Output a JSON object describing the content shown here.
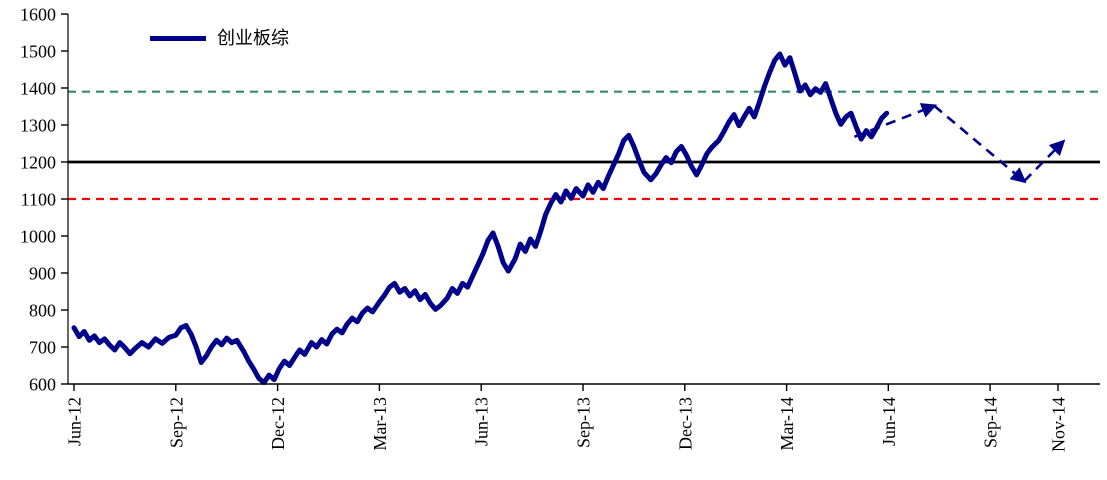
{
  "chart_data": {
    "type": "line",
    "title": "",
    "legend": [
      {
        "label": "创业板综",
        "color": "#00008B"
      }
    ],
    "grid": false,
    "legend_position": "top-left-inside",
    "xlim": [
      0,
      29
    ],
    "ylim": [
      600,
      1600
    ],
    "x_unit": "months since Jun-2012",
    "y_ticks": [
      600,
      700,
      800,
      900,
      1000,
      1100,
      1200,
      1300,
      1400,
      1500,
      1600
    ],
    "x_ticks": [
      {
        "pos": 0,
        "label": "Jun-12"
      },
      {
        "pos": 3,
        "label": "Sep-12"
      },
      {
        "pos": 6,
        "label": "Dec-12"
      },
      {
        "pos": 9,
        "label": "Mar-13"
      },
      {
        "pos": 12,
        "label": "Jun-13"
      },
      {
        "pos": 15,
        "label": "Sep-13"
      },
      {
        "pos": 18,
        "label": "Dec-13"
      },
      {
        "pos": 21,
        "label": "Mar-14"
      },
      {
        "pos": 24,
        "label": "Jun-14"
      },
      {
        "pos": 27,
        "label": "Sep-14"
      },
      {
        "pos": 29,
        "label": "Nov-14"
      }
    ],
    "reference_lines": [
      {
        "value": 1390,
        "color": "#2E8B6E",
        "style": "dashed",
        "width": 2.2
      },
      {
        "value": 1200,
        "color": "#000000",
        "style": "solid",
        "width": 2.8
      },
      {
        "value": 1100,
        "color": "#FF0000",
        "style": "dashed",
        "width": 2.2
      }
    ],
    "series": [
      {
        "name": "创业板综",
        "color": "#00008B",
        "width": 5,
        "style": "solid",
        "points": [
          [
            0,
            752
          ],
          [
            0.15,
            728
          ],
          [
            0.3,
            742
          ],
          [
            0.45,
            718
          ],
          [
            0.6,
            730
          ],
          [
            0.75,
            712
          ],
          [
            0.9,
            722
          ],
          [
            1.05,
            705
          ],
          [
            1.2,
            692
          ],
          [
            1.35,
            712
          ],
          [
            1.5,
            698
          ],
          [
            1.65,
            682
          ],
          [
            1.8,
            696
          ],
          [
            2,
            712
          ],
          [
            2.2,
            700
          ],
          [
            2.4,
            722
          ],
          [
            2.6,
            710
          ],
          [
            2.8,
            726
          ],
          [
            3,
            732
          ],
          [
            3.15,
            752
          ],
          [
            3.3,
            758
          ],
          [
            3.45,
            735
          ],
          [
            3.6,
            700
          ],
          [
            3.75,
            658
          ],
          [
            3.9,
            676
          ],
          [
            4.05,
            700
          ],
          [
            4.2,
            718
          ],
          [
            4.35,
            706
          ],
          [
            4.5,
            724
          ],
          [
            4.65,
            712
          ],
          [
            4.8,
            718
          ],
          [
            5,
            688
          ],
          [
            5.15,
            662
          ],
          [
            5.3,
            640
          ],
          [
            5.45,
            615
          ],
          [
            5.6,
            604
          ],
          [
            5.75,
            624
          ],
          [
            5.9,
            612
          ],
          [
            6.05,
            642
          ],
          [
            6.2,
            662
          ],
          [
            6.35,
            650
          ],
          [
            6.5,
            672
          ],
          [
            6.65,
            692
          ],
          [
            6.8,
            680
          ],
          [
            7,
            712
          ],
          [
            7.15,
            700
          ],
          [
            7.3,
            720
          ],
          [
            7.45,
            708
          ],
          [
            7.6,
            735
          ],
          [
            7.75,
            748
          ],
          [
            7.9,
            738
          ],
          [
            8.05,
            762
          ],
          [
            8.2,
            778
          ],
          [
            8.35,
            768
          ],
          [
            8.5,
            792
          ],
          [
            8.65,
            805
          ],
          [
            8.8,
            795
          ],
          [
            9,
            822
          ],
          [
            9.15,
            840
          ],
          [
            9.3,
            862
          ],
          [
            9.45,
            872
          ],
          [
            9.6,
            848
          ],
          [
            9.75,
            858
          ],
          [
            9.9,
            838
          ],
          [
            10.05,
            852
          ],
          [
            10.2,
            828
          ],
          [
            10.35,
            842
          ],
          [
            10.5,
            818
          ],
          [
            10.65,
            802
          ],
          [
            10.8,
            812
          ],
          [
            11,
            832
          ],
          [
            11.15,
            858
          ],
          [
            11.3,
            845
          ],
          [
            11.45,
            872
          ],
          [
            11.6,
            862
          ],
          [
            11.75,
            892
          ],
          [
            11.9,
            922
          ],
          [
            12.05,
            952
          ],
          [
            12.2,
            988
          ],
          [
            12.35,
            1008
          ],
          [
            12.5,
            972
          ],
          [
            12.65,
            928
          ],
          [
            12.8,
            905
          ],
          [
            13,
            938
          ],
          [
            13.15,
            978
          ],
          [
            13.3,
            958
          ],
          [
            13.45,
            992
          ],
          [
            13.6,
            972
          ],
          [
            13.75,
            1012
          ],
          [
            13.9,
            1058
          ],
          [
            14.05,
            1088
          ],
          [
            14.2,
            1112
          ],
          [
            14.35,
            1092
          ],
          [
            14.5,
            1122
          ],
          [
            14.65,
            1102
          ],
          [
            14.8,
            1128
          ],
          [
            15,
            1108
          ],
          [
            15.15,
            1138
          ],
          [
            15.3,
            1118
          ],
          [
            15.45,
            1145
          ],
          [
            15.6,
            1128
          ],
          [
            15.75,
            1162
          ],
          [
            15.9,
            1192
          ],
          [
            16.05,
            1222
          ],
          [
            16.2,
            1258
          ],
          [
            16.35,
            1272
          ],
          [
            16.5,
            1242
          ],
          [
            16.65,
            1205
          ],
          [
            16.8,
            1172
          ],
          [
            17,
            1152
          ],
          [
            17.15,
            1168
          ],
          [
            17.3,
            1192
          ],
          [
            17.45,
            1212
          ],
          [
            17.6,
            1198
          ],
          [
            17.75,
            1228
          ],
          [
            17.9,
            1242
          ],
          [
            18.05,
            1218
          ],
          [
            18.2,
            1188
          ],
          [
            18.35,
            1165
          ],
          [
            18.5,
            1192
          ],
          [
            18.65,
            1222
          ],
          [
            18.8,
            1240
          ],
          [
            19,
            1258
          ],
          [
            19.15,
            1282
          ],
          [
            19.3,
            1308
          ],
          [
            19.45,
            1328
          ],
          [
            19.6,
            1298
          ],
          [
            19.75,
            1322
          ],
          [
            19.9,
            1345
          ],
          [
            20.05,
            1322
          ],
          [
            20.2,
            1362
          ],
          [
            20.35,
            1405
          ],
          [
            20.5,
            1442
          ],
          [
            20.65,
            1475
          ],
          [
            20.8,
            1492
          ],
          [
            20.95,
            1462
          ],
          [
            21.1,
            1482
          ],
          [
            21.25,
            1438
          ],
          [
            21.4,
            1392
          ],
          [
            21.55,
            1408
          ],
          [
            21.7,
            1382
          ],
          [
            21.85,
            1398
          ],
          [
            22,
            1388
          ],
          [
            22.15,
            1412
          ],
          [
            22.3,
            1372
          ],
          [
            22.45,
            1332
          ],
          [
            22.6,
            1302
          ],
          [
            22.75,
            1322
          ],
          [
            22.9,
            1332
          ],
          [
            23.05,
            1295
          ],
          [
            23.2,
            1262
          ],
          [
            23.35,
            1285
          ],
          [
            23.5,
            1268
          ],
          [
            23.65,
            1292
          ],
          [
            23.8,
            1318
          ],
          [
            23.95,
            1332
          ]
        ]
      },
      {
        "name": "forecast",
        "color": "#00008B",
        "width": 2.6,
        "style": "dashed-arrows",
        "segments": [
          [
            [
              23.0,
              1268
            ],
            [
              25.35,
              1352
            ]
          ],
          [
            [
              25.35,
              1352
            ],
            [
              28.0,
              1148
            ]
          ],
          [
            [
              28.0,
              1148
            ],
            [
              29.15,
              1255
            ]
          ]
        ]
      }
    ]
  }
}
